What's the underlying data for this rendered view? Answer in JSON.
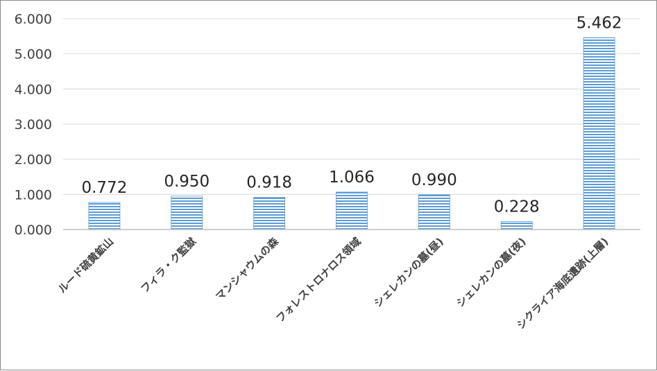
{
  "chart_data": {
    "type": "bar",
    "title": "",
    "xlabel": "",
    "ylabel": "",
    "categories": [
      "ルード硫黄鉱山",
      "フィラ・ク監獄",
      "マンシャウムの森",
      "フォレストロナロス領域",
      "シェレカンの墓(昼)",
      "シェレカンの墓(夜)",
      "シクライア海底遺跡(上層)"
    ],
    "values": [
      0.772,
      0.95,
      0.918,
      1.066,
      0.99,
      0.228,
      5.462
    ],
    "value_labels": [
      "0.772",
      "0.950",
      "0.918",
      "1.066",
      "0.990",
      "0.228",
      "5.462"
    ],
    "yticks": [
      0,
      1,
      2,
      3,
      4,
      5,
      6
    ],
    "ytick_labels": [
      "0.000",
      "1.000",
      "2.000",
      "3.000",
      "4.000",
      "5.000",
      "6.000"
    ],
    "ylim": [
      0,
      6
    ],
    "grid": true,
    "legend": "none",
    "bar_fill": "#6fa8dc",
    "bar_stripe": "#ffffff",
    "bar_border": "#5b9bd5"
  }
}
